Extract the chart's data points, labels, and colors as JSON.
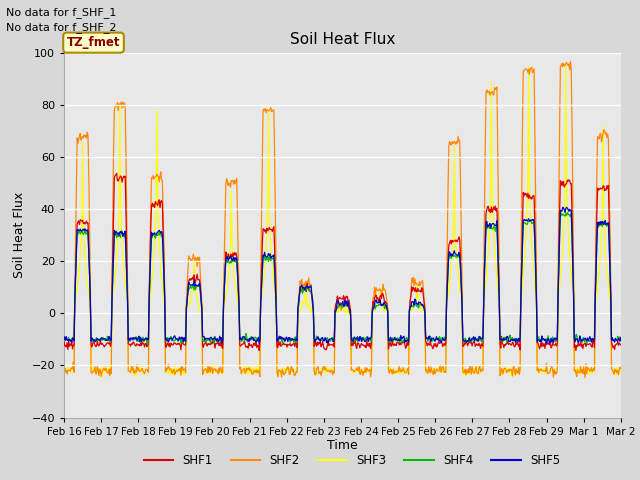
{
  "title": "Soil Heat Flux",
  "ylabel": "Soil Heat Flux",
  "xlabel": "Time",
  "ylim": [
    -40,
    100
  ],
  "background_color": "#d8d8d8",
  "plot_bg_color": "#e8e8e8",
  "note_line1": "No data for f_SHF_1",
  "note_line2": "No data for f_SHF_2",
  "tz_label": "TZ_fmet",
  "xtick_labels": [
    "Feb 16",
    "Feb 17",
    "Feb 18",
    "Feb 19",
    "Feb 20",
    "Feb 21",
    "Feb 22",
    "Feb 23",
    "Feb 24",
    "Feb 25",
    "Feb 26",
    "Feb 27",
    "Feb 28",
    "Feb 29",
    "Mar 1",
    "Mar 2"
  ],
  "ytick_values": [
    -40,
    -20,
    0,
    20,
    40,
    60,
    80,
    100
  ],
  "series_colors": {
    "SHF1": "#dd0000",
    "SHF2": "#ff8800",
    "SHF3": "#ffff00",
    "SHF4": "#00bb00",
    "SHF5": "#0000cc"
  },
  "legend_entries": [
    "SHF1",
    "SHF2",
    "SHF3",
    "SHF4",
    "SHF5"
  ],
  "figsize": [
    6.4,
    4.8
  ],
  "dpi": 100
}
